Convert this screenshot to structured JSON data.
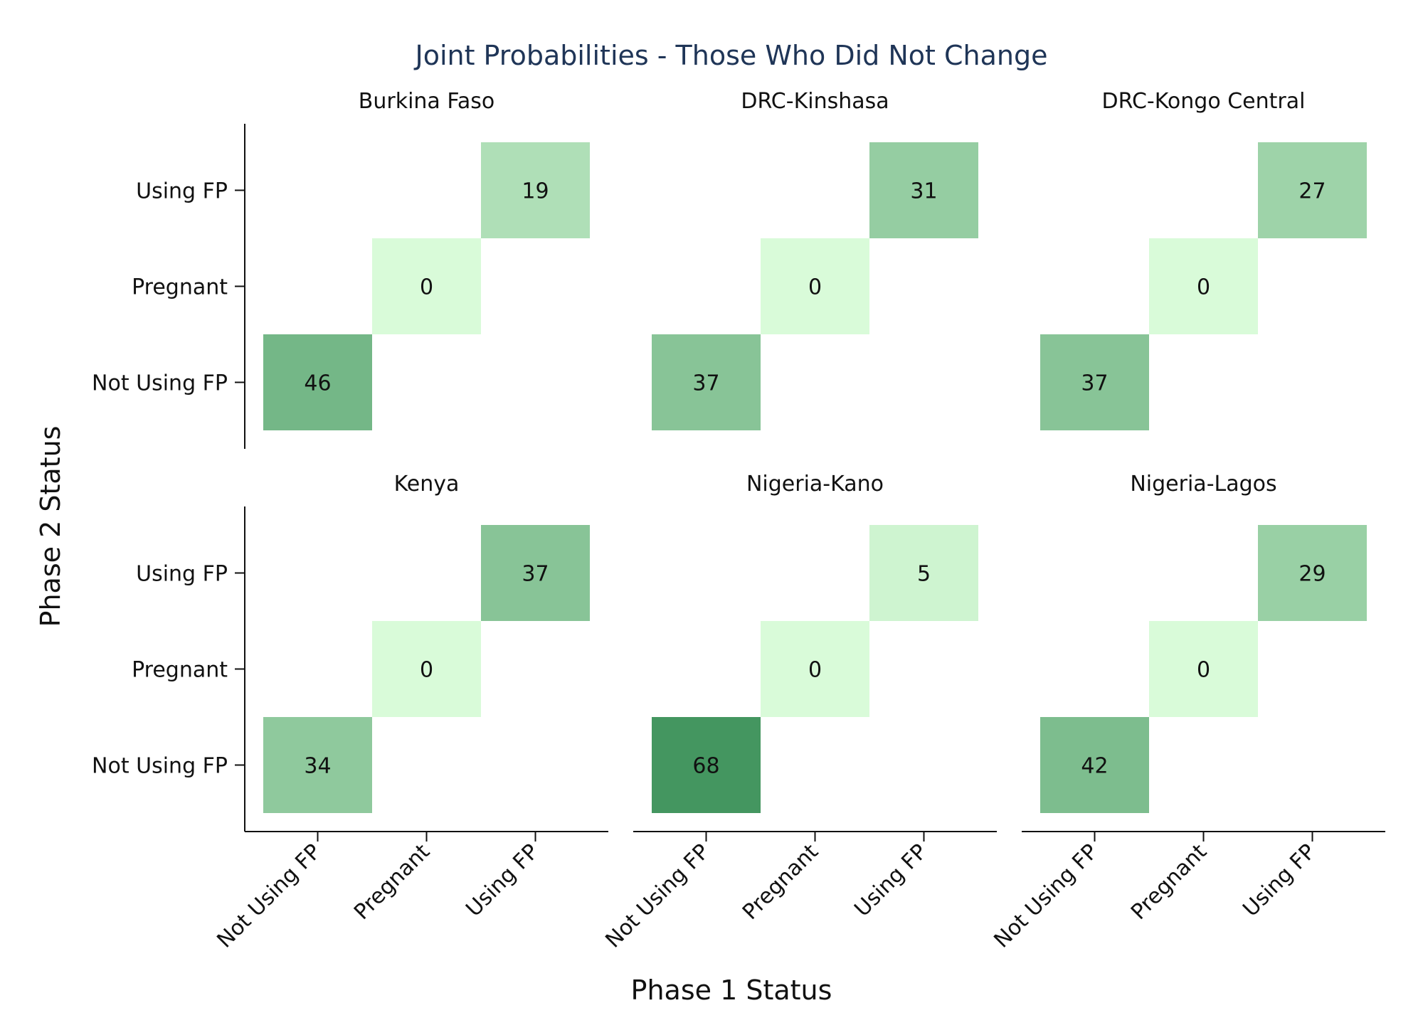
{
  "chart_data": {
    "type": "heatmap",
    "title": "Joint Probabilities - Those Who Did Not Change",
    "xlabel": "Phase 1 Status",
    "ylabel": "Phase 2 Status",
    "categories": [
      "Not Using FP",
      "Pregnant",
      "Using FP"
    ],
    "grid": false,
    "colors": {
      "low": "#d9fbd9",
      "high": "#449660",
      "axis": "#111111",
      "title": "#1f3557"
    },
    "value_range": [
      0,
      68
    ],
    "facets": [
      {
        "name": "Burkina Faso",
        "cells": [
          {
            "x": "Not Using FP",
            "y": "Not Using FP",
            "value": 46
          },
          {
            "x": "Pregnant",
            "y": "Pregnant",
            "value": 0
          },
          {
            "x": "Using FP",
            "y": "Using FP",
            "value": 19
          }
        ]
      },
      {
        "name": "DRC-Kinshasa",
        "cells": [
          {
            "x": "Not Using FP",
            "y": "Not Using FP",
            "value": 37
          },
          {
            "x": "Pregnant",
            "y": "Pregnant",
            "value": 0
          },
          {
            "x": "Using FP",
            "y": "Using FP",
            "value": 31
          }
        ]
      },
      {
        "name": "DRC-Kongo Central",
        "cells": [
          {
            "x": "Not Using FP",
            "y": "Not Using FP",
            "value": 37
          },
          {
            "x": "Pregnant",
            "y": "Pregnant",
            "value": 0
          },
          {
            "x": "Using FP",
            "y": "Using FP",
            "value": 27
          }
        ]
      },
      {
        "name": "Kenya",
        "cells": [
          {
            "x": "Not Using FP",
            "y": "Not Using FP",
            "value": 34
          },
          {
            "x": "Pregnant",
            "y": "Pregnant",
            "value": 0
          },
          {
            "x": "Using FP",
            "y": "Using FP",
            "value": 37
          }
        ]
      },
      {
        "name": "Nigeria-Kano",
        "cells": [
          {
            "x": "Not Using FP",
            "y": "Not Using FP",
            "value": 68
          },
          {
            "x": "Pregnant",
            "y": "Pregnant",
            "value": 0
          },
          {
            "x": "Using FP",
            "y": "Using FP",
            "value": 5
          }
        ]
      },
      {
        "name": "Nigeria-Lagos",
        "cells": [
          {
            "x": "Not Using FP",
            "y": "Not Using FP",
            "value": 42
          },
          {
            "x": "Pregnant",
            "y": "Pregnant",
            "value": 0
          },
          {
            "x": "Using FP",
            "y": "Using FP",
            "value": 29
          }
        ]
      }
    ]
  }
}
